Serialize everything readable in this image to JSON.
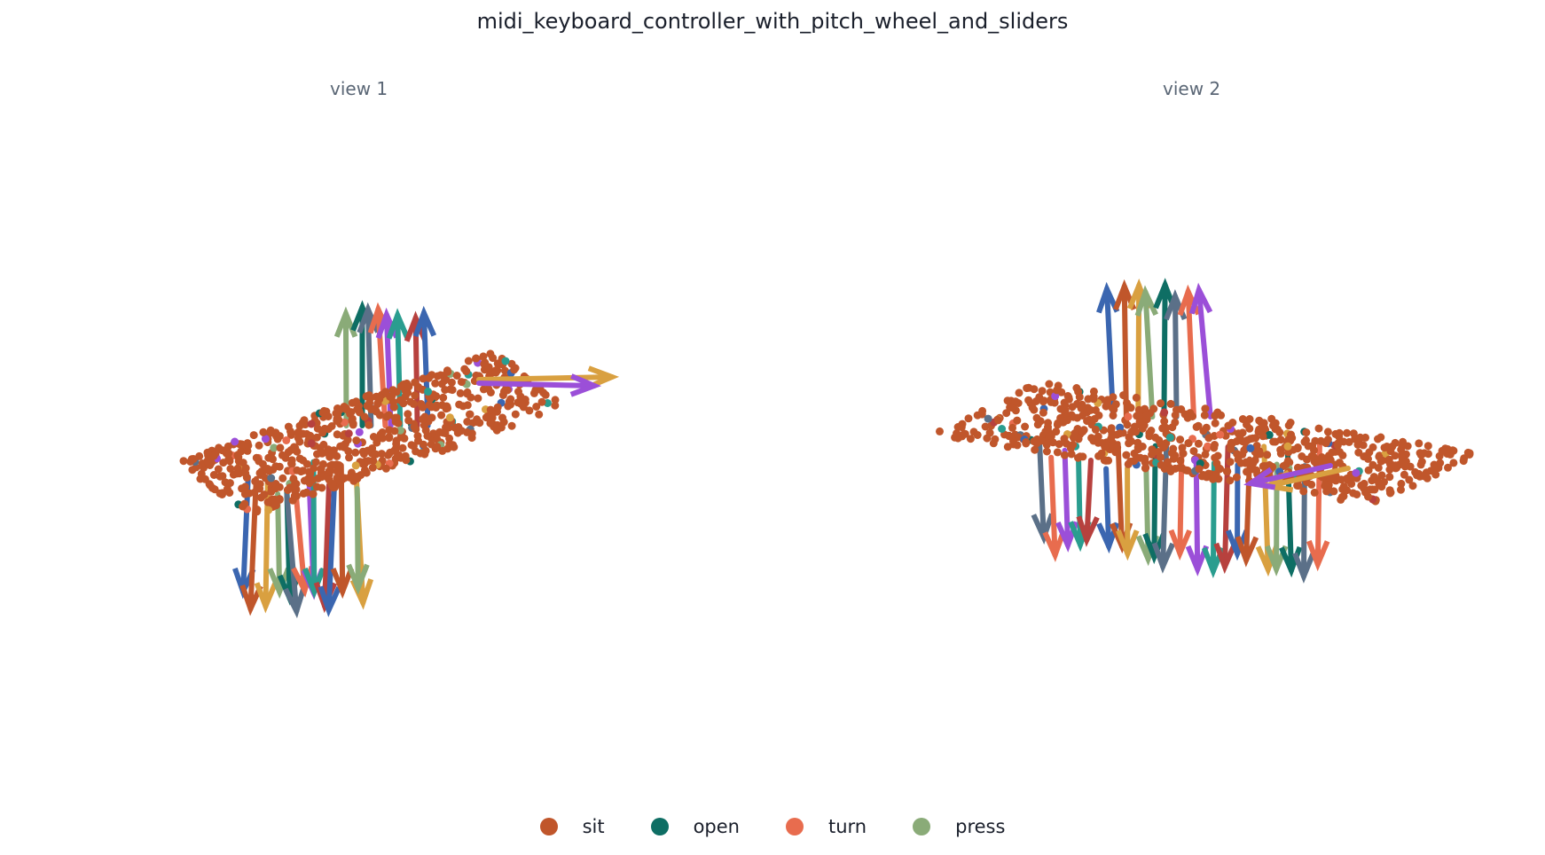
{
  "title": "midi_keyboard_controller_with_pitch_wheel_and_sliders",
  "views": [
    {
      "label": "view 1"
    },
    {
      "label": "view 2"
    }
  ],
  "legend": [
    {
      "label": "sit",
      "color": "#c0562b"
    },
    {
      "label": "open",
      "color": "#0e6e64"
    },
    {
      "label": "turn",
      "color": "#e86c4e"
    },
    {
      "label": "press",
      "color": "#8aab78"
    }
  ],
  "palette": {
    "points": "#c0562b",
    "arrows": [
      "#3b66b0",
      "#c0562b",
      "#d9a040",
      "#8aab78",
      "#0e6e64",
      "#5b7088",
      "#e86c4e",
      "#9b4fd8",
      "#2a9d8f",
      "#b7413e"
    ]
  }
}
